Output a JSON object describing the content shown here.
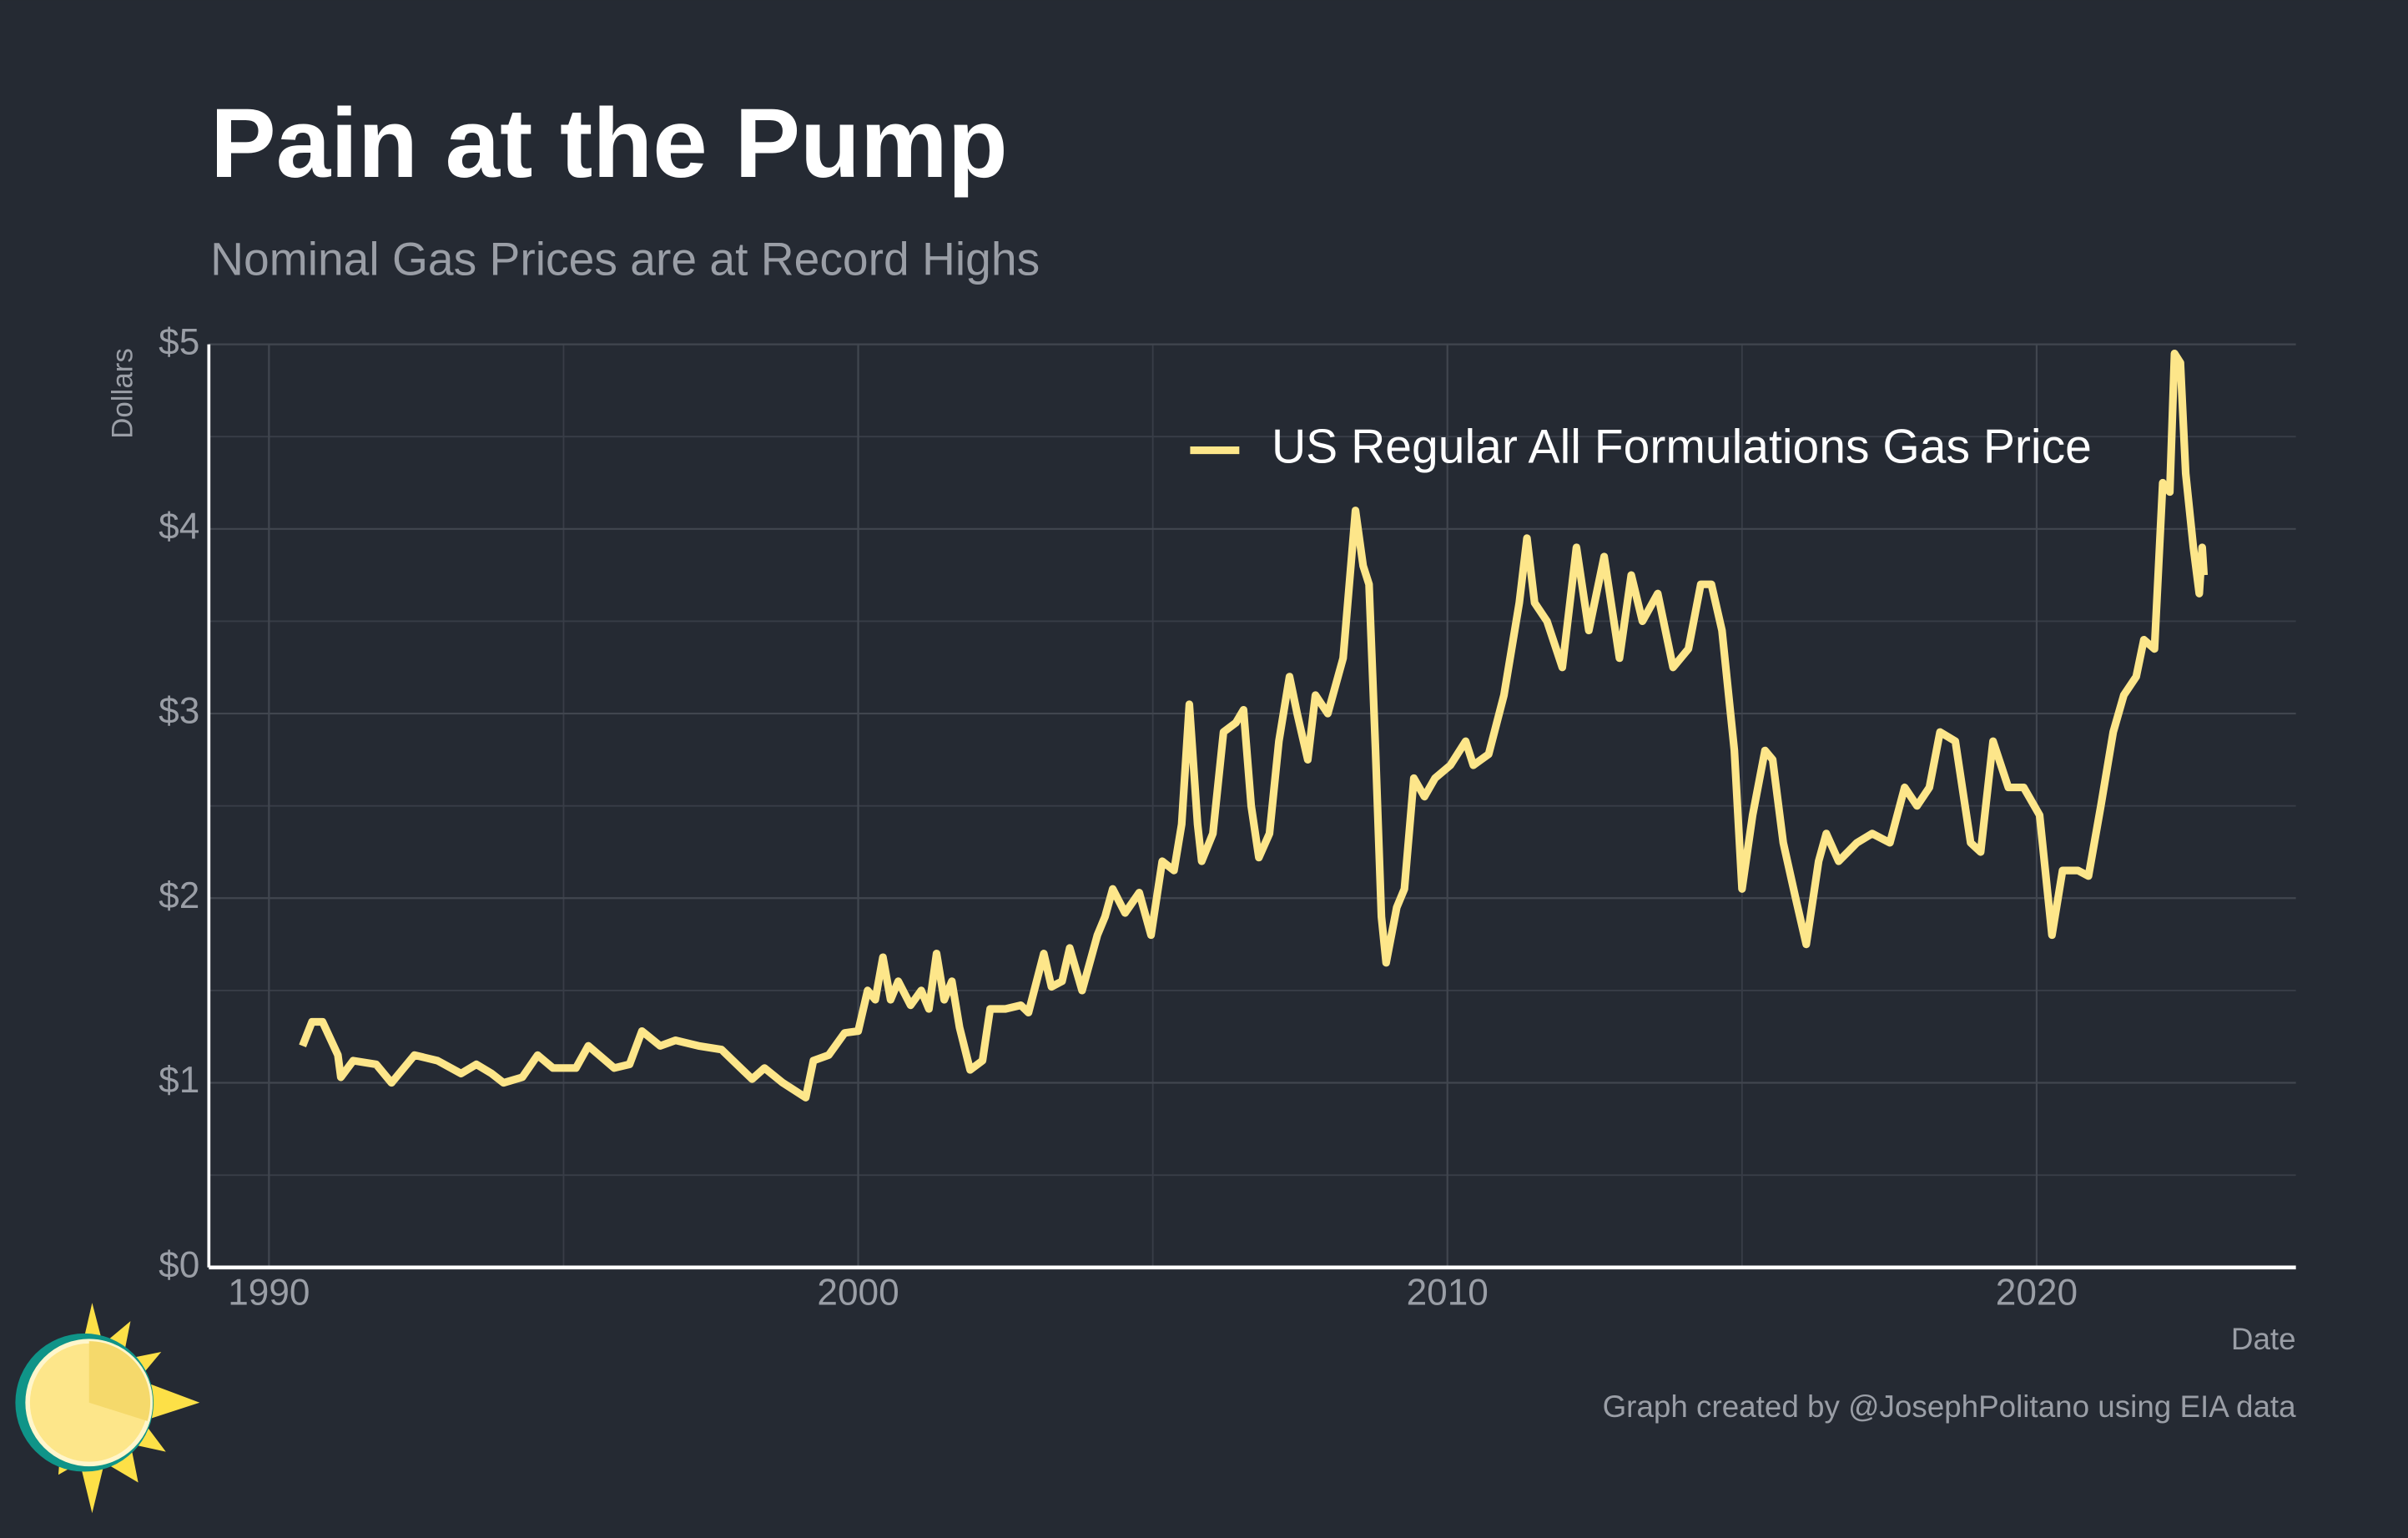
{
  "chart_data": {
    "type": "line",
    "title": "Pain at the Pump",
    "subtitle": "Nominal Gas Prices are at Record Highs",
    "y_label": "Dollars",
    "x_label": "Date",
    "caption": "Graph created by @JosephPolitano using EIA data",
    "x": [
      1990.57,
      1990.73,
      1990.91,
      1991.17,
      1991.22,
      1991.43,
      1991.82,
      1992.08,
      1992.47,
      1992.86,
      1993.26,
      1993.52,
      1993.78,
      1993.98,
      1994.3,
      1994.56,
      1994.82,
      1995.21,
      1995.42,
      1995.86,
      1996.12,
      1996.33,
      1996.64,
      1996.9,
      1997.29,
      1997.68,
      1998.2,
      1998.41,
      1998.72,
      1999.11,
      1999.24,
      1999.5,
      1999.77,
      2000.0,
      2000.16,
      2000.29,
      2000.42,
      2000.55,
      2000.68,
      2000.89,
      2001.07,
      2001.2,
      2001.33,
      2001.46,
      2001.59,
      2001.72,
      2001.9,
      2002.11,
      2002.24,
      2002.5,
      2002.76,
      2002.89,
      2003.15,
      2003.28,
      2003.46,
      2003.59,
      2003.8,
      2004.06,
      2004.19,
      2004.32,
      2004.53,
      2004.77,
      2004.97,
      2005.16,
      2005.36,
      2005.49,
      2005.62,
      2005.76,
      2005.83,
      2006.02,
      2006.2,
      2006.41,
      2006.54,
      2006.67,
      2006.8,
      2006.98,
      2007.14,
      2007.32,
      2007.45,
      2007.63,
      2007.76,
      2007.97,
      2008.23,
      2008.44,
      2008.57,
      2008.67,
      2008.78,
      2008.88,
      2008.96,
      2009.14,
      2009.27,
      2009.43,
      2009.61,
      2009.79,
      2010.05,
      2010.31,
      2010.44,
      2010.7,
      2010.96,
      2011.22,
      2011.35,
      2011.48,
      2011.69,
      2011.95,
      2012.19,
      2012.4,
      2012.66,
      2012.92,
      2013.12,
      2013.31,
      2013.57,
      2013.83,
      2014.09,
      2014.3,
      2014.48,
      2014.66,
      2014.87,
      2015.0,
      2015.18,
      2015.39,
      2015.52,
      2015.7,
      2015.91,
      2016.09,
      2016.3,
      2016.43,
      2016.64,
      2016.95,
      2017.21,
      2017.51,
      2017.76,
      2017.97,
      2018.18,
      2018.36,
      2018.62,
      2018.88,
      2019.05,
      2019.26,
      2019.52,
      2019.78,
      2020.05,
      2020.26,
      2020.44,
      2020.7,
      2020.88,
      2021.09,
      2021.3,
      2021.48,
      2021.69,
      2021.82,
      2022.0,
      2022.14,
      2022.26,
      2022.34,
      2022.44,
      2022.53,
      2022.66,
      2022.76,
      2022.81,
      2022.84
    ],
    "series": [
      {
        "name": "US Regular All Formulations Gas Price",
        "color": "#fde68a",
        "values": [
          1.2,
          1.33,
          1.33,
          1.15,
          1.03,
          1.12,
          1.1,
          1.0,
          1.15,
          1.12,
          1.05,
          1.1,
          1.05,
          1.0,
          1.03,
          1.15,
          1.08,
          1.08,
          1.2,
          1.08,
          1.1,
          1.28,
          1.2,
          1.23,
          1.2,
          1.18,
          1.02,
          1.08,
          1.0,
          0.92,
          1.12,
          1.15,
          1.27,
          1.28,
          1.5,
          1.45,
          1.68,
          1.45,
          1.55,
          1.42,
          1.5,
          1.4,
          1.7,
          1.45,
          1.55,
          1.3,
          1.07,
          1.12,
          1.4,
          1.4,
          1.42,
          1.38,
          1.7,
          1.52,
          1.55,
          1.73,
          1.5,
          1.8,
          1.9,
          2.05,
          1.92,
          2.03,
          1.8,
          2.2,
          2.15,
          2.4,
          3.05,
          2.4,
          2.2,
          2.35,
          2.9,
          2.95,
          3.02,
          2.5,
          2.22,
          2.35,
          2.85,
          3.2,
          3.0,
          2.75,
          3.1,
          3.0,
          3.3,
          4.1,
          3.8,
          3.7,
          2.8,
          1.9,
          1.65,
          1.95,
          2.05,
          2.65,
          2.55,
          2.65,
          2.72,
          2.85,
          2.72,
          2.78,
          3.1,
          3.6,
          3.95,
          3.6,
          3.5,
          3.25,
          3.9,
          3.45,
          3.85,
          3.3,
          3.75,
          3.5,
          3.65,
          3.25,
          3.35,
          3.7,
          3.7,
          3.45,
          2.8,
          2.05,
          2.45,
          2.8,
          2.75,
          2.3,
          2.0,
          1.75,
          2.2,
          2.35,
          2.2,
          2.3,
          2.35,
          2.3,
          2.6,
          2.5,
          2.6,
          2.9,
          2.85,
          2.3,
          2.25,
          2.85,
          2.6,
          2.6,
          2.45,
          1.8,
          2.15,
          2.15,
          2.12,
          2.5,
          2.9,
          3.1,
          3.2,
          3.4,
          3.35,
          4.25,
          4.2,
          4.95,
          4.9,
          4.3,
          3.9,
          3.65,
          3.9,
          3.75
        ]
      }
    ],
    "xlim": [
      1988.98,
      2024.4
    ],
    "xticks": [
      1990,
      2000,
      2010,
      2020
    ],
    "ylim": [
      0,
      5
    ],
    "yticks": [
      {
        "value": 0,
        "label": "$0"
      },
      {
        "value": 1,
        "label": "$1"
      },
      {
        "value": 2,
        "label": "$2"
      },
      {
        "value": 3,
        "label": "$3"
      },
      {
        "value": 4,
        "label": "$4"
      },
      {
        "value": 5,
        "label": "$5"
      }
    ],
    "grid": true,
    "minor_grid": true,
    "legend": "top-right"
  }
}
